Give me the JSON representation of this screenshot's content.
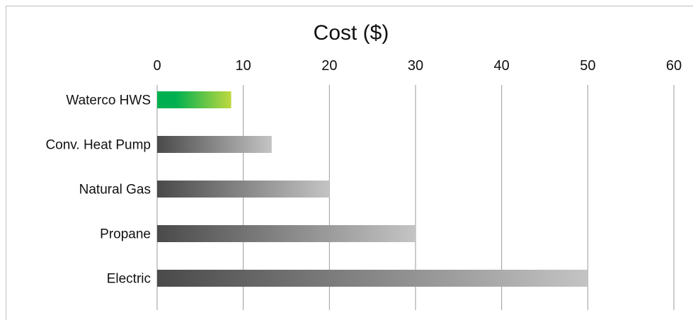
{
  "chart_data": {
    "type": "bar",
    "orientation": "horizontal",
    "title": "Cost ($)",
    "xlabel": "",
    "ylabel": "",
    "xlim": [
      0,
      60
    ],
    "ticks": [
      "0",
      "10",
      "20",
      "30",
      "40",
      "50",
      "60"
    ],
    "tick_values": [
      0,
      10,
      20,
      30,
      40,
      50,
      60
    ],
    "categories": [
      "Waterco HWS",
      "Conv. Heat Pump",
      "Natural Gas",
      "Propane",
      "Electric"
    ],
    "values": [
      8.6,
      13.3,
      20,
      30,
      50
    ],
    "grid": true,
    "axis_position": "top",
    "colors": {
      "highlight_start": "#00b050",
      "highlight_end": "#c0d940",
      "bar_start": "#4a4a4a",
      "bar_end": "#c4c4c4",
      "grid": "#9a9a9a",
      "text": "#111111"
    }
  }
}
